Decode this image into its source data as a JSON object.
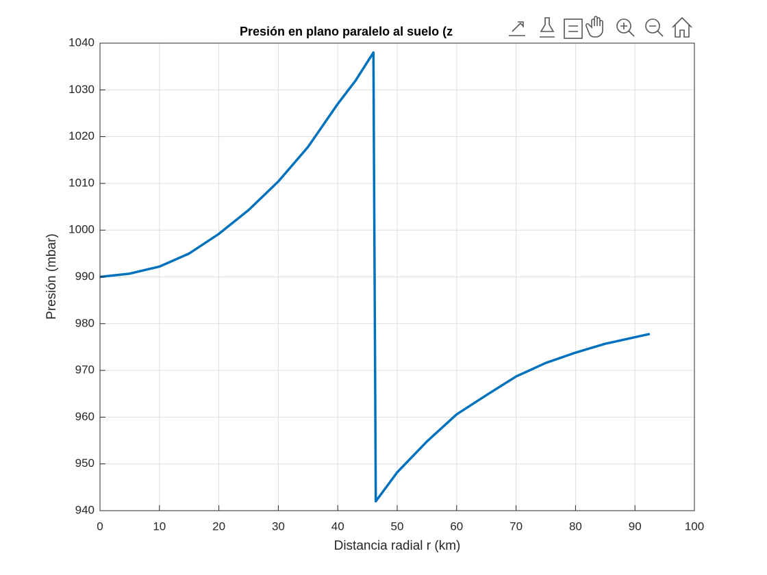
{
  "chart_data": {
    "type": "line",
    "title": "Presión en plano paralelo al suelo (z",
    "x_label": "Distancia radial r (km)",
    "y_label": "Presión (mbar)",
    "series": [
      {
        "color": "#0072bd",
        "x": [
          0,
          5,
          10,
          15,
          20,
          25,
          30,
          35,
          40,
          43,
          46.0,
          46.4,
          50,
          55,
          60,
          65,
          70,
          75,
          80,
          85,
          92.5
        ],
        "values": [
          990,
          990.7,
          992.2,
          995,
          999.2,
          1004.3,
          1010.4,
          1017.8,
          1027,
          1032,
          1038,
          942,
          948.2,
          954.8,
          960.6,
          964.7,
          968.7,
          971.6,
          973.8,
          975.7,
          977.8
        ]
      }
    ],
    "xlim": [
      0,
      100
    ],
    "xticks": [
      0,
      10,
      20,
      30,
      40,
      50,
      60,
      70,
      80,
      90,
      100
    ],
    "ylim": [
      940,
      1040
    ],
    "yticks": [
      940,
      950,
      960,
      970,
      980,
      990,
      1000,
      1010,
      1020,
      1030,
      1040
    ],
    "grid": true
  }
}
